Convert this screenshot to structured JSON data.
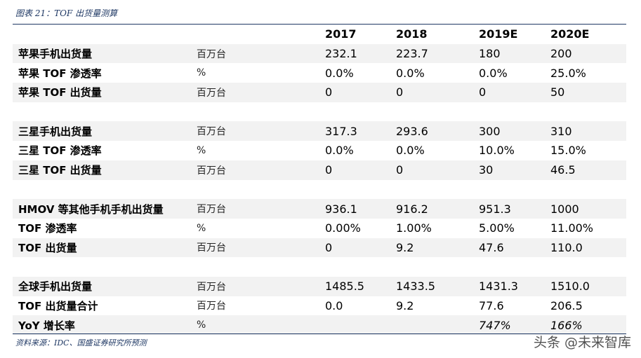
{
  "caption": "图表 21：TOF 出货量测算",
  "header": [
    "2017",
    "2018",
    "2019E",
    "2020E"
  ],
  "rows": [
    {
      "label": "苹果手机出货量",
      "unit": "百万台",
      "values": [
        "232.1",
        "223.7",
        "180",
        "200"
      ],
      "shaded": true
    },
    {
      "label": "苹果 TOF 渗透率",
      "unit": "%",
      "values": [
        "0.0%",
        "0.0%",
        "0.0%",
        "25.0%"
      ],
      "shaded": false
    },
    {
      "label": "苹果 TOF 出货量",
      "unit": "百万台",
      "values": [
        "0",
        "0",
        "0",
        "50"
      ],
      "shaded": true
    },
    {
      "label": "",
      "unit": "",
      "values": [
        "",
        "",
        "",
        ""
      ],
      "shaded": false
    },
    {
      "label": "三星手机出货量",
      "unit": "百万台",
      "values": [
        "317.3",
        "293.6",
        "300",
        "310"
      ],
      "shaded": true
    },
    {
      "label": "三星 TOF 渗透率",
      "unit": "%",
      "values": [
        "0.0%",
        "0.0%",
        "10.0%",
        "15.0%"
      ],
      "shaded": false
    },
    {
      "label": "三星 TOF 出货量",
      "unit": "百万台",
      "values": [
        "0",
        "0",
        "30",
        "46.5"
      ],
      "shaded": true
    },
    {
      "label": "",
      "unit": "",
      "values": [
        "",
        "",
        "",
        ""
      ],
      "shaded": false
    },
    {
      "label": "HMOV 等其他手机手机出货量",
      "unit": "百万台",
      "values": [
        "936.1",
        "916.2",
        "951.3",
        "1000"
      ],
      "shaded": true
    },
    {
      "label": "TOF 渗透率",
      "unit": "%",
      "values": [
        "0.00%",
        "1.00%",
        "5.00%",
        "11.00%"
      ],
      "shaded": false
    },
    {
      "label": "TOF 出货量",
      "unit": "百万台",
      "values": [
        "0",
        "9.2",
        "47.6",
        "110.0"
      ],
      "shaded": true
    },
    {
      "label": "",
      "unit": "",
      "values": [
        "",
        "",
        "",
        ""
      ],
      "shaded": false
    },
    {
      "label": "全球手机出货量",
      "unit": "百万台",
      "values": [
        "1485.5",
        "1433.5",
        "1431.3",
        "1510.0"
      ],
      "shaded": true
    },
    {
      "label": "TOF 出货量合计",
      "unit": "百万台",
      "values": [
        "0.0",
        "9.2",
        "77.6",
        "206.5"
      ],
      "shaded": false
    },
    {
      "label": "YoY 增长率",
      "unit": "%",
      "values": [
        "",
        "",
        "747%",
        "166%"
      ],
      "shaded": true,
      "italic_values": true
    }
  ],
  "source": "资料来源：IDC、国盛证券研究所预测",
  "watermark": "头条 @未来智库"
}
